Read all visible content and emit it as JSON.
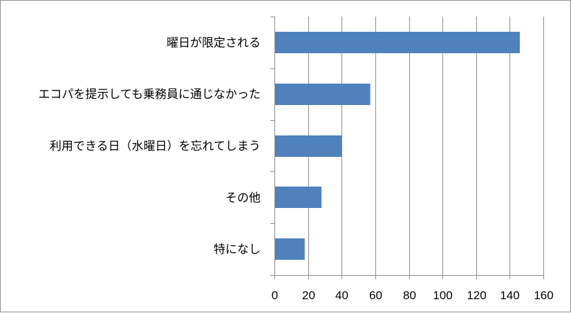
{
  "chart_data": {
    "type": "bar",
    "orientation": "horizontal",
    "categories": [
      "曜日が限定される",
      "エコパを提示しても乗務員に通じなかった",
      "利用できる日（水曜日）を忘れてしまう",
      "その他",
      "特になし"
    ],
    "values": [
      146,
      57,
      40,
      28,
      18
    ],
    "xlim": [
      0,
      160
    ],
    "x_ticks": [
      0,
      20,
      40,
      60,
      80,
      100,
      120,
      140,
      160
    ],
    "grid": true,
    "bar_color": "#4f81bd",
    "title": "",
    "xlabel": "",
    "ylabel": ""
  }
}
